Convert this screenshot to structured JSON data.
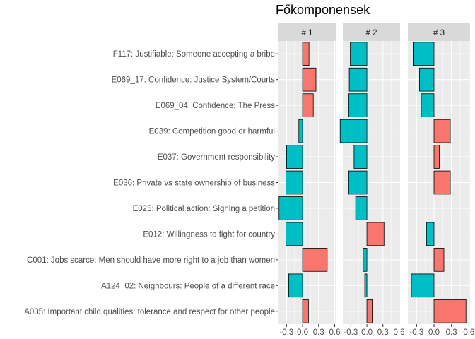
{
  "chart_data": {
    "type": "bar",
    "orientation": "horizontal",
    "title": "Főkomponensek",
    "xlabel": "",
    "ylabel": "",
    "facets": [
      "# 1",
      "# 2",
      "# 3"
    ],
    "xlim": [
      -0.45,
      0.62
    ],
    "x_ticks": [
      -0.3,
      0.0,
      0.3,
      0.6
    ],
    "x_tick_labels": [
      "-0.3",
      "0.0",
      "0.3",
      "0.6"
    ],
    "grid": true,
    "legend": "none",
    "colors": {
      "positive": "#f8766d",
      "negative": "#00bfc4",
      "panel_bg": "#ebebeb",
      "strip_bg": "#d9d9d9",
      "grid": "#ffffff",
      "bar_outline": "#000000"
    },
    "categories": [
      "F117: Justifiable: Someone accepting a bribe",
      "E069_17: Confidence: Justice System/Courts",
      "E069_04: Confidence: The Press",
      "E039: Competition good or harmful",
      "E037: Government responsibility",
      "E036: Private vs state ownership of business",
      "E025: Political action: Signing a petition",
      "E012: Willingness to fight for country",
      "C001: Jobs scarce: Men should have more right to a job than women",
      "A124_02: Neighbours: People of a different race",
      "A035: Important child qualities: tolerance and respect for other people"
    ],
    "series": [
      {
        "name": "# 1",
        "values": [
          0.12,
          0.25,
          0.2,
          -0.07,
          -0.3,
          -0.31,
          -0.44,
          -0.31,
          0.46,
          -0.26,
          0.11
        ]
      },
      {
        "name": "# 2",
        "values": [
          -0.31,
          -0.33,
          -0.34,
          -0.5,
          -0.24,
          -0.34,
          -0.21,
          0.32,
          -0.07,
          -0.04,
          0.1
        ]
      },
      {
        "name": "# 3",
        "values": [
          -0.36,
          -0.25,
          -0.22,
          0.28,
          0.09,
          0.28,
          0.0,
          -0.13,
          0.17,
          -0.39,
          0.55
        ]
      }
    ]
  }
}
